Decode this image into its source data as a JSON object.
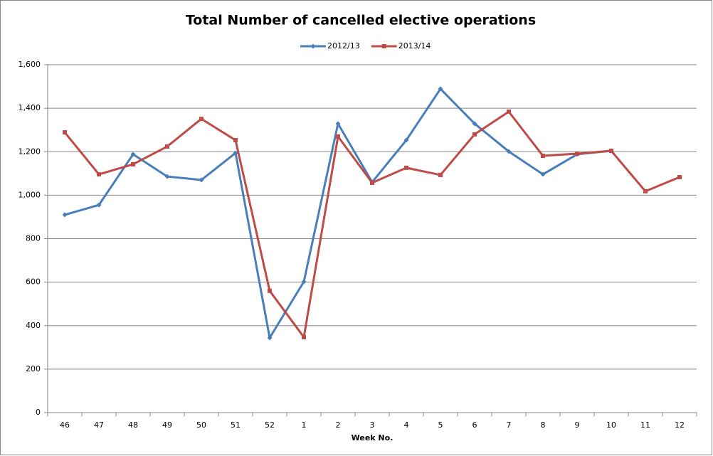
{
  "chart_data": {
    "type": "line",
    "title": "Total Number of cancelled elective operations",
    "x_label": "Week No.",
    "categories": [
      "46",
      "47",
      "48",
      "49",
      "50",
      "51",
      "52",
      "1",
      "2",
      "3",
      "4",
      "5",
      "6",
      "7",
      "8",
      "9",
      "10",
      "11",
      "12"
    ],
    "series": [
      {
        "name": "2012/13",
        "color": "#4a7ebb",
        "marker": "diamond",
        "values": [
          910,
          955,
          1188,
          1086,
          1070,
          1194,
          344,
          602,
          1329,
          1060,
          1253,
          1489,
          1329,
          1201,
          1096,
          1188,
          1204,
          null,
          null
        ]
      },
      {
        "name": "2013/14",
        "color": "#be4b48",
        "marker": "square",
        "values": [
          1289,
          1096,
          1142,
          1224,
          1351,
          1253,
          560,
          347,
          1270,
          1057,
          1126,
          1093,
          1280,
          1384,
          1181,
          1191,
          1204,
          1018,
          1083
        ]
      }
    ],
    "ylim": [
      0,
      1600
    ],
    "yticks": [
      0,
      200,
      400,
      600,
      800,
      {
        "value": 1000,
        "label": "1,000"
      },
      {
        "value": 1200,
        "label": "1,200"
      },
      {
        "value": 1400,
        "label": "1,400"
      },
      {
        "value": 1600,
        "label": "1,600"
      }
    ],
    "grid": true,
    "legend": "top"
  }
}
